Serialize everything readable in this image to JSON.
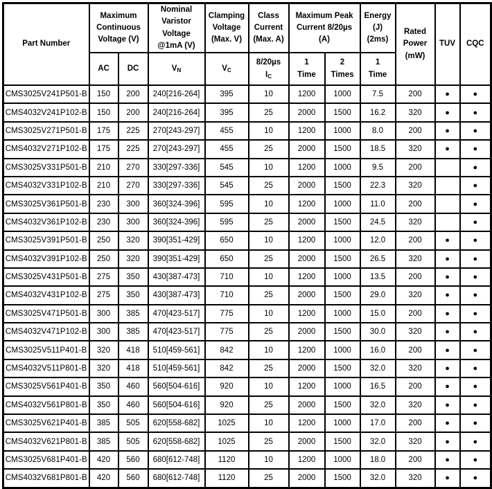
{
  "icons": {
    "dot": "●"
  },
  "table": {
    "header": {
      "part_number": "Part Number",
      "max_continuous": {
        "label": "Maximum\nContinuous\nVoltage (V)",
        "sub": [
          "AC",
          "DC"
        ]
      },
      "nominal_varistor": {
        "label": "Nominal\nVaristor\nVoltage\n@1mA (V)",
        "sub_base": "V",
        "sub_sub": "N"
      },
      "clamping": {
        "label": "Clamping\nVoltage\n(Max. V)",
        "sub_base": "V",
        "sub_sub": "C"
      },
      "class_current": {
        "label": "Class\nCurrent\n(Max. A)",
        "sub_line1": "8/20µs",
        "sub_base": "I",
        "sub_sub": "C"
      },
      "max_peak": {
        "label": "Maximum Peak\nCurrent 8/20µs\n(A)",
        "sub": [
          "1\nTime",
          "2\nTimes"
        ]
      },
      "energy": {
        "label": "Energy\n(J)\n(2ms)",
        "sub": [
          "1\nTime"
        ]
      },
      "rated_power": "Rated\nPower\n(mW)",
      "tuv": "TUV",
      "cqc": "CQC"
    },
    "rows": [
      {
        "part_number": "CMS3025V241P501-B",
        "ac": "150",
        "dc": "200",
        "vn": "240[216-264]",
        "vc": "395",
        "ic": "10",
        "peak_1_time": "1200",
        "peak_2_times": "1000",
        "energy_1_time": "7.5",
        "rated_power": "200",
        "tuv": true,
        "cqc": true
      },
      {
        "part_number": "CMS4032V241P102-B",
        "ac": "150",
        "dc": "200",
        "vn": "240[216-264]",
        "vc": "395",
        "ic": "25",
        "peak_1_time": "2000",
        "peak_2_times": "1500",
        "energy_1_time": "16.2",
        "rated_power": "320",
        "tuv": true,
        "cqc": true
      },
      {
        "part_number": "CMS3025V271P501-B",
        "ac": "175",
        "dc": "225",
        "vn": "270[243-297]",
        "vc": "455",
        "ic": "10",
        "peak_1_time": "1200",
        "peak_2_times": "1000",
        "energy_1_time": "8.0",
        "rated_power": "200",
        "tuv": true,
        "cqc": true
      },
      {
        "part_number": "CMS4032V271P102-B",
        "ac": "175",
        "dc": "225",
        "vn": "270[243-297]",
        "vc": "455",
        "ic": "25",
        "peak_1_time": "2000",
        "peak_2_times": "1500",
        "energy_1_time": "18.5",
        "rated_power": "320",
        "tuv": true,
        "cqc": true
      },
      {
        "part_number": "CMS3025V331P501-B",
        "ac": "210",
        "dc": "270",
        "vn": "330[297-336]",
        "vc": "545",
        "ic": "10",
        "peak_1_time": "1200",
        "peak_2_times": "1000",
        "energy_1_time": "9.5",
        "rated_power": "200",
        "tuv": false,
        "cqc": true
      },
      {
        "part_number": "CMS4032V331P102-B",
        "ac": "210",
        "dc": "270",
        "vn": "330[297-336]",
        "vc": "545",
        "ic": "25",
        "peak_1_time": "2000",
        "peak_2_times": "1500",
        "energy_1_time": "22.3",
        "rated_power": "320",
        "tuv": false,
        "cqc": true
      },
      {
        "part_number": "CMS3025V361P501-B",
        "ac": "230",
        "dc": "300",
        "vn": "360[324-396]",
        "vc": "595",
        "ic": "10",
        "peak_1_time": "1200",
        "peak_2_times": "1000",
        "energy_1_time": "11.0",
        "rated_power": "200",
        "tuv": false,
        "cqc": true
      },
      {
        "part_number": "CMS4032V361P102-B",
        "ac": "230",
        "dc": "300",
        "vn": "360[324-396]",
        "vc": "595",
        "ic": "25",
        "peak_1_time": "2000",
        "peak_2_times": "1500",
        "energy_1_time": "24.5",
        "rated_power": "320",
        "tuv": false,
        "cqc": true
      },
      {
        "part_number": "CMS3025V391P501-B",
        "ac": "250",
        "dc": "320",
        "vn": "390[351-429]",
        "vc": "650",
        "ic": "10",
        "peak_1_time": "1200",
        "peak_2_times": "1000",
        "energy_1_time": "12.0",
        "rated_power": "200",
        "tuv": true,
        "cqc": true
      },
      {
        "part_number": "CMS4032V391P102-B",
        "ac": "250",
        "dc": "320",
        "vn": "390[351-429]",
        "vc": "650",
        "ic": "25",
        "peak_1_time": "2000",
        "peak_2_times": "1500",
        "energy_1_time": "26.5",
        "rated_power": "320",
        "tuv": true,
        "cqc": true
      },
      {
        "part_number": "CMS3025V431P501-B",
        "ac": "275",
        "dc": "350",
        "vn": "430[387-473]",
        "vc": "710",
        "ic": "10",
        "peak_1_time": "1200",
        "peak_2_times": "1000",
        "energy_1_time": "13.5",
        "rated_power": "200",
        "tuv": true,
        "cqc": true
      },
      {
        "part_number": "CMS4032V431P102-B",
        "ac": "275",
        "dc": "350",
        "vn": "430[387-473]",
        "vc": "710",
        "ic": "25",
        "peak_1_time": "2000",
        "peak_2_times": "1500",
        "energy_1_time": "29.0",
        "rated_power": "320",
        "tuv": true,
        "cqc": true
      },
      {
        "part_number": "CMS3025V471P501-B",
        "ac": "300",
        "dc": "385",
        "vn": "470[423-517]",
        "vc": "775",
        "ic": "10",
        "peak_1_time": "1200",
        "peak_2_times": "1000",
        "energy_1_time": "15.0",
        "rated_power": "200",
        "tuv": true,
        "cqc": true
      },
      {
        "part_number": "CMS4032V471P102-B",
        "ac": "300",
        "dc": "385",
        "vn": "470[423-517]",
        "vc": "775",
        "ic": "25",
        "peak_1_time": "2000",
        "peak_2_times": "1500",
        "energy_1_time": "30.0",
        "rated_power": "320",
        "tuv": true,
        "cqc": true
      },
      {
        "part_number": "CMS3025V511P401-B",
        "ac": "320",
        "dc": "418",
        "vn": "510[459-561]",
        "vc": "842",
        "ic": "10",
        "peak_1_time": "1200",
        "peak_2_times": "1000",
        "energy_1_time": "16.0",
        "rated_power": "200",
        "tuv": true,
        "cqc": true
      },
      {
        "part_number": "CMS4032V511P801-B",
        "ac": "320",
        "dc": "418",
        "vn": "510[459-561]",
        "vc": "842",
        "ic": "25",
        "peak_1_time": "2000",
        "peak_2_times": "1500",
        "energy_1_time": "32.0",
        "rated_power": "320",
        "tuv": true,
        "cqc": true
      },
      {
        "part_number": "CMS3025V561P401-B",
        "ac": "350",
        "dc": "460",
        "vn": "560[504-616]",
        "vc": "920",
        "ic": "10",
        "peak_1_time": "1200",
        "peak_2_times": "1000",
        "energy_1_time": "16.5",
        "rated_power": "200",
        "tuv": true,
        "cqc": true
      },
      {
        "part_number": "CMS4032V561P801-B",
        "ac": "350",
        "dc": "460",
        "vn": "560[504-616]",
        "vc": "920",
        "ic": "25",
        "peak_1_time": "2000",
        "peak_2_times": "1500",
        "energy_1_time": "32.0",
        "rated_power": "320",
        "tuv": true,
        "cqc": true
      },
      {
        "part_number": "CMS3025V621P401-B",
        "ac": "385",
        "dc": "505",
        "vn": "620[558-682]",
        "vc": "1025",
        "ic": "10",
        "peak_1_time": "1200",
        "peak_2_times": "1000",
        "energy_1_time": "17.0",
        "rated_power": "200",
        "tuv": true,
        "cqc": true
      },
      {
        "part_number": "CMS4032V621P801-B",
        "ac": "385",
        "dc": "505",
        "vn": "620[558-682]",
        "vc": "1025",
        "ic": "25",
        "peak_1_time": "2000",
        "peak_2_times": "1500",
        "energy_1_time": "32.0",
        "rated_power": "320",
        "tuv": true,
        "cqc": true
      },
      {
        "part_number": "CMS3025V681P401-B",
        "ac": "420",
        "dc": "560",
        "vn": "680[612-748]",
        "vc": "1120",
        "ic": "10",
        "peak_1_time": "1200",
        "peak_2_times": "1000",
        "energy_1_time": "18.0",
        "rated_power": "200",
        "tuv": true,
        "cqc": true
      },
      {
        "part_number": "CMS4032V681P801-B",
        "ac": "420",
        "dc": "560",
        "vn": "680[612-748]",
        "vc": "1120",
        "ic": "25",
        "peak_1_time": "2000",
        "peak_2_times": "1500",
        "energy_1_time": "32.0",
        "rated_power": "320",
        "tuv": true,
        "cqc": true
      }
    ]
  }
}
